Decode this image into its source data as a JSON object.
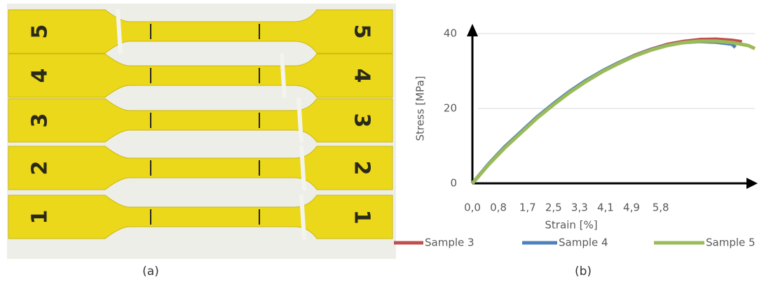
{
  "photo": {
    "specimen_labels": [
      "5",
      "4",
      "3",
      "2",
      "1"
    ],
    "caption": "(a)"
  },
  "chart_data": {
    "type": "line",
    "caption": "(b)",
    "x_label": "Strain [%]",
    "y_label": "Stress [MPa]",
    "xlim": [
      0,
      8.7
    ],
    "ylim": [
      0,
      40
    ],
    "xticks": [
      {
        "value": 0,
        "label": "0,0"
      },
      {
        "value": 0.8,
        "label": "0,8"
      },
      {
        "value": 1.7,
        "label": "1,7"
      },
      {
        "value": 2.5,
        "label": "2,5"
      },
      {
        "value": 3.3,
        "label": "3,3"
      },
      {
        "value": 4.1,
        "label": "4,1"
      },
      {
        "value": 4.9,
        "label": "4,9"
      },
      {
        "value": 5.8,
        "label": "5,8"
      }
    ],
    "yticks": [
      0,
      20,
      40
    ],
    "grid": true,
    "series": [
      {
        "name": "Sample 3",
        "color": "#c0504d",
        "x": [
          0,
          0.5,
          1,
          1.5,
          2,
          2.5,
          3,
          3.5,
          4,
          4.5,
          5,
          5.5,
          6,
          6.5,
          7,
          7.5,
          8,
          8.3
        ],
        "values": [
          0,
          5.1,
          9.6,
          13.7,
          17.7,
          21.2,
          24.5,
          27.4,
          30,
          32.2,
          34.2,
          35.8,
          37.1,
          37.9,
          38.4,
          38.5,
          38.2,
          37.8
        ]
      },
      {
        "name": "Sample 4",
        "color": "#4f81bd",
        "x": [
          0,
          0.5,
          1,
          1.5,
          2,
          2.5,
          3,
          3.5,
          4,
          4.5,
          5,
          5.5,
          6,
          6.5,
          7,
          7.5,
          8,
          8.1
        ],
        "values": [
          0,
          5.2,
          9.8,
          13.8,
          17.8,
          21.3,
          24.6,
          27.5,
          30,
          32.2,
          34.1,
          35.7,
          36.9,
          37.6,
          37.9,
          37.7,
          37.2,
          36.3
        ]
      },
      {
        "name": "Sample 5",
        "color": "#9bbb59",
        "x": [
          0,
          0.5,
          1,
          1.5,
          2,
          2.5,
          3,
          3.5,
          4,
          4.5,
          5,
          5.5,
          6,
          6.5,
          7,
          7.5,
          8,
          8.5,
          8.7
        ],
        "values": [
          0,
          5,
          9.5,
          13.5,
          17.5,
          21,
          24.3,
          27.2,
          29.8,
          32,
          34,
          35.6,
          36.8,
          37.6,
          38,
          38,
          37.6,
          36.8,
          36
        ]
      }
    ]
  }
}
